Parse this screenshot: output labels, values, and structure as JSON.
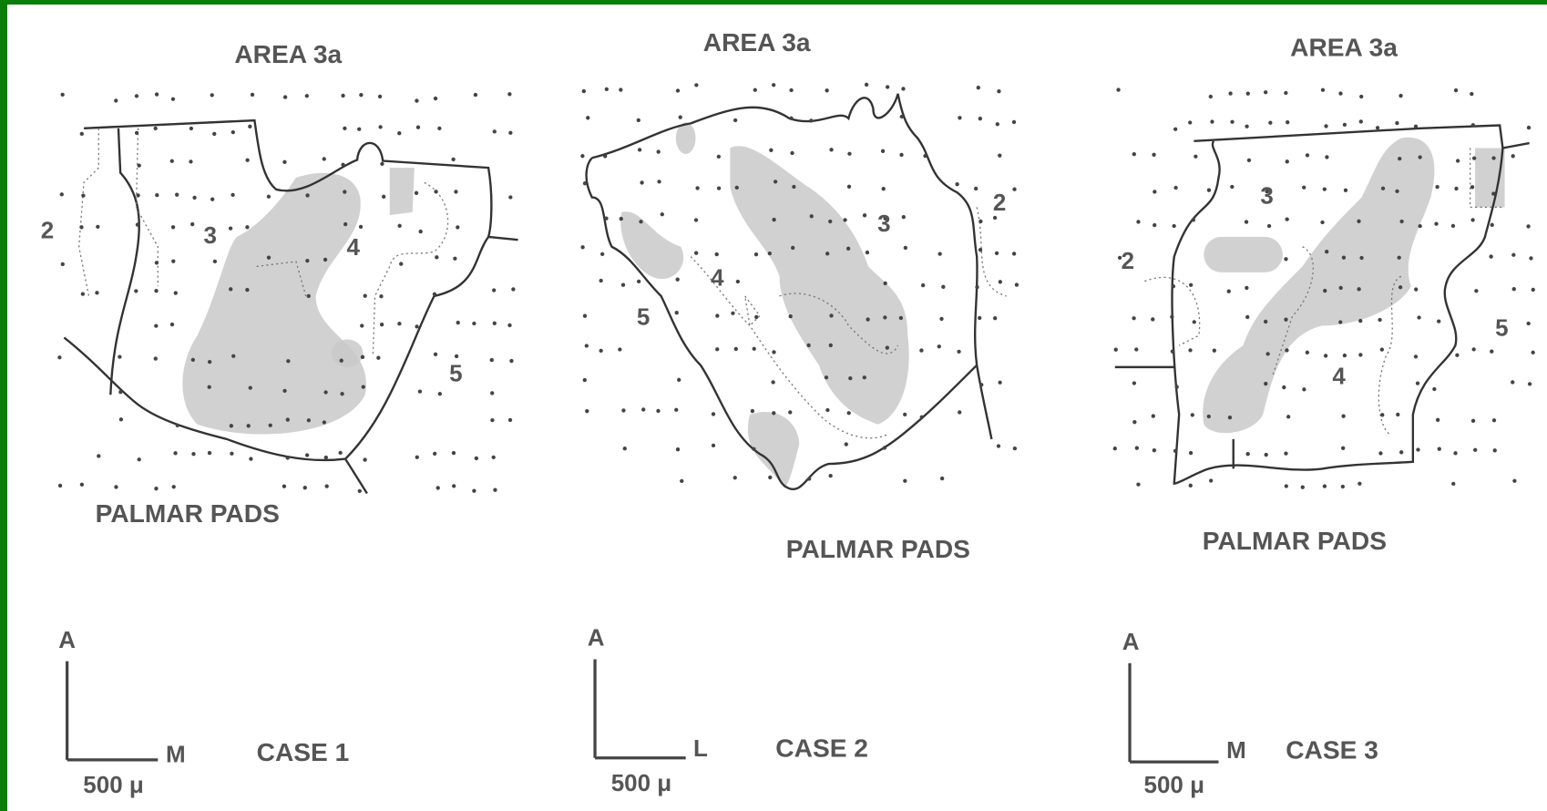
{
  "panels": [
    {
      "title": "AREA 3a",
      "region_labels": [
        "2",
        "3",
        "4",
        "5"
      ],
      "bottom_label": "PALMAR PADS",
      "axis_up": "A",
      "axis_side": "M",
      "scale": "500 μ",
      "case": "CASE 1"
    },
    {
      "title": "AREA 3a",
      "region_labels": [
        "2",
        "3",
        "4",
        "5"
      ],
      "bottom_label": "PALMAR PADS",
      "axis_up": "A",
      "axis_side": "L",
      "scale": "500 μ",
      "case": "CASE 2"
    },
    {
      "title": "AREA 3a",
      "region_labels": [
        "2",
        "3",
        "4",
        "5"
      ],
      "bottom_label": "PALMAR PADS",
      "axis_up": "A",
      "axis_side": "M",
      "scale": "500 μ",
      "case": "CASE 3"
    }
  ]
}
